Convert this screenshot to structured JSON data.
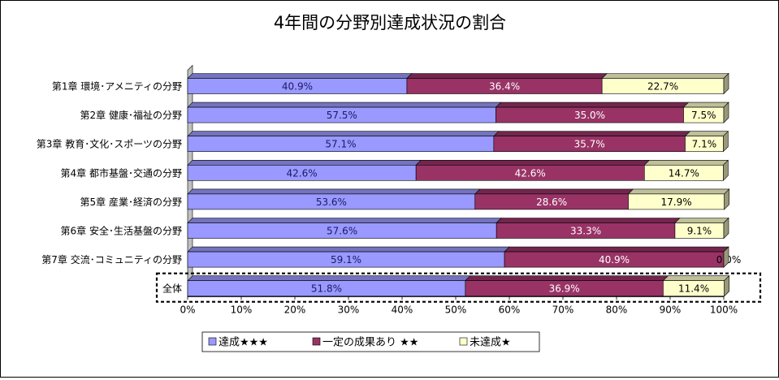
{
  "chart_data": {
    "type": "bar",
    "orientation": "horizontal",
    "stacked": "percent",
    "title": "4年間の分野別達成状況の割合",
    "categories": [
      "第1章  環境･アメニティの分野",
      "第2章  健康･福祉の分野",
      "第3章  教育･文化･スポーツの分野",
      "第4章  都市基盤･交通の分野",
      "第5章  産業･経済の分野",
      "第6章  安全･生活基盤の分野",
      "第7章  交流･コミュニティの分野",
      "全体"
    ],
    "series": [
      {
        "name": "達成★★★",
        "color": "#9999ff",
        "values": [
          40.9,
          57.5,
          57.1,
          42.6,
          53.6,
          57.6,
          59.1,
          51.8
        ],
        "labels": [
          "40.9%",
          "57.5%",
          "57.1%",
          "42.6%",
          "53.6%",
          "57.6%",
          "59.1%",
          "51.8%"
        ]
      },
      {
        "name": "一定の成果あり ★★",
        "color": "#993366",
        "values": [
          36.4,
          35.0,
          35.7,
          42.6,
          28.6,
          33.3,
          40.9,
          36.9
        ],
        "labels": [
          "36.4%",
          "35.0%",
          "35.7%",
          "42.6%",
          "28.6%",
          "33.3%",
          "40.9%",
          "36.9%"
        ]
      },
      {
        "name": "未達成★",
        "color": "#ffffcc",
        "values": [
          22.7,
          7.5,
          7.1,
          14.7,
          17.9,
          9.1,
          0.0,
          11.4
        ],
        "labels": [
          "22.7%",
          "7.5%",
          "7.1%",
          "14.7%",
          "17.9%",
          "9.1%",
          "0.0%",
          "11.4%"
        ]
      }
    ],
    "xlim": [
      0,
      100
    ],
    "xticks": [
      "0%",
      "10%",
      "20%",
      "30%",
      "40%",
      "50%",
      "60%",
      "70%",
      "80%",
      "90%",
      "100%"
    ],
    "legend_position": "bottom",
    "highlight_category": "全体"
  }
}
